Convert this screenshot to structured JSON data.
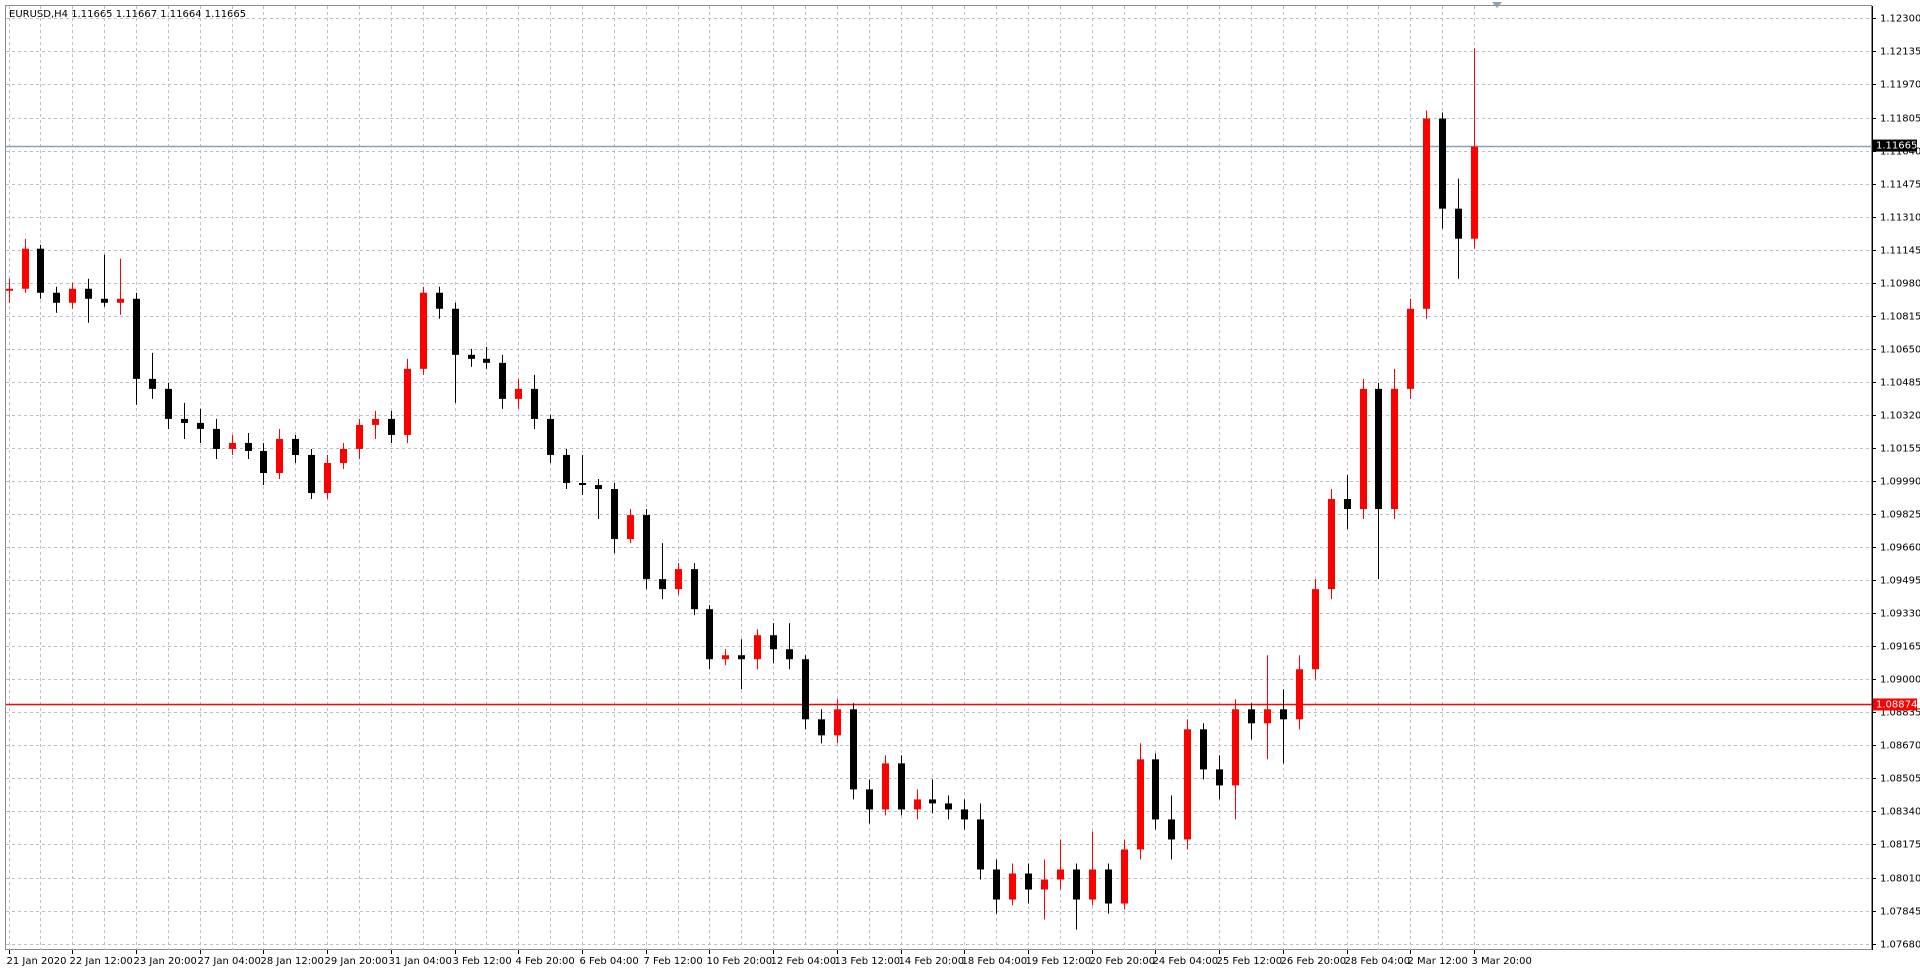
{
  "chart_data": {
    "type": "candlestick",
    "title": "EURUSD,H4  1.11665 1.11667 1.11664 1.11665",
    "bull_color": "#ff0000",
    "bear_color": "#000000",
    "grid": true,
    "ylim": [
      1.07648,
      1.12362
    ],
    "yticks": [
      {
        "value": 1.0768,
        "label": "1.07680"
      },
      1.07845,
      {
        "value": 1.0801,
        "label": "1.08010"
      },
      1.08175,
      {
        "value": 1.0834,
        "label": "1.08340"
      },
      1.08505,
      {
        "value": 1.0867,
        "label": "1.08670"
      },
      1.08835,
      {
        "value": 1.09,
        "label": "1.09000"
      },
      1.09165,
      {
        "value": 1.0933,
        "label": "1.09330"
      },
      1.09495,
      {
        "value": 1.0966,
        "label": "1.09660"
      },
      1.09825,
      {
        "value": 1.0999,
        "label": "1.09990"
      },
      1.10155,
      {
        "value": 1.1032,
        "label": "1.10320"
      },
      1.10485,
      {
        "value": 1.1065,
        "label": "1.10650"
      },
      1.10815,
      {
        "value": 1.1098,
        "label": "1.10980"
      },
      1.11145,
      {
        "value": 1.1131,
        "label": "1.11310"
      },
      1.11475,
      {
        "value": 1.1164,
        "label": "1.11640"
      },
      1.11805,
      {
        "value": 1.1197,
        "label": "1.11970"
      },
      1.12135,
      {
        "value": 1.123,
        "label": "1.12300"
      }
    ],
    "hlines": [
      {
        "value": 1.11665,
        "color": "#8c9fb5",
        "label_bg": "#000000"
      },
      {
        "value": 1.08874,
        "color": "#ff0000",
        "label_bg": "#ff0000"
      }
    ],
    "categories": [
      "21 Jan 2020",
      null,
      null,
      null,
      "22 Jan 12:00",
      null,
      null,
      null,
      "23 Jan 20:00",
      null,
      null,
      null,
      "27 Jan 04:00",
      null,
      null,
      null,
      "28 Jan 12:00",
      null,
      null,
      null,
      "29 Jan 20:00",
      null,
      null,
      null,
      "31 Jan 04:00",
      null,
      null,
      null,
      "3 Feb 12:00",
      null,
      null,
      null,
      "4 Feb 20:00",
      null,
      null,
      null,
      "6 Feb 04:00",
      null,
      null,
      null,
      "7 Feb 12:00",
      null,
      null,
      null,
      "10 Feb 20:00",
      null,
      null,
      null,
      "12 Feb 04:00",
      null,
      null,
      null,
      "13 Feb 12:00",
      null,
      null,
      null,
      "14 Feb 20:00",
      null,
      null,
      null,
      "18 Feb 04:00",
      null,
      null,
      null,
      "19 Feb 12:00",
      null,
      null,
      null,
      "20 Feb 20:00",
      null,
      null,
      null,
      "24 Feb 04:00",
      null,
      null,
      null,
      "25 Feb 12:00",
      null,
      null,
      null,
      "26 Feb 20:00",
      null,
      null,
      null,
      "28 Feb 04:00",
      null,
      null,
      null,
      "2 Mar 12:00",
      null,
      null,
      null,
      "3 Mar 20:00"
    ],
    "ohlc": [
      [
        1.1094,
        1.11,
        1.1088,
        1.1095
      ],
      [
        1.1095,
        1.112,
        1.1093,
        1.1115
      ],
      [
        1.1115,
        1.1117,
        1.109,
        1.1093
      ],
      [
        1.1093,
        1.1096,
        1.1083,
        1.1088
      ],
      [
        1.1088,
        1.1098,
        1.1085,
        1.1095
      ],
      [
        1.1095,
        1.11,
        1.1078,
        1.109
      ],
      [
        1.109,
        1.1112,
        1.1086,
        1.1088
      ],
      [
        1.1088,
        1.111,
        1.1082,
        1.109
      ],
      [
        1.109,
        1.1093,
        1.1037,
        1.105
      ],
      [
        1.105,
        1.1063,
        1.104,
        1.1045
      ],
      [
        1.1045,
        1.1048,
        1.1025,
        1.103
      ],
      [
        1.103,
        1.1038,
        1.102,
        1.1028
      ],
      [
        1.1028,
        1.1035,
        1.1018,
        1.1025
      ],
      [
        1.1025,
        1.103,
        1.101,
        1.1015
      ],
      [
        1.1015,
        1.1022,
        1.1012,
        1.1018
      ],
      [
        1.1018,
        1.1023,
        1.101,
        1.1014
      ],
      [
        1.1014,
        1.1018,
        1.0997,
        1.1003
      ],
      [
        1.1003,
        1.1025,
        1.1,
        1.102
      ],
      [
        1.102,
        1.1022,
        1.1008,
        1.1012
      ],
      [
        1.1012,
        1.1015,
        1.099,
        1.0993
      ],
      [
        1.0993,
        1.1012,
        1.099,
        1.1008
      ],
      [
        1.1008,
        1.1018,
        1.1005,
        1.1015
      ],
      [
        1.1015,
        1.103,
        1.101,
        1.1027
      ],
      [
        1.1027,
        1.1034,
        1.102,
        1.103
      ],
      [
        1.103,
        1.1034,
        1.1018,
        1.1022
      ],
      [
        1.1022,
        1.106,
        1.1018,
        1.1055
      ],
      [
        1.1055,
        1.1096,
        1.1052,
        1.1093
      ],
      [
        1.1093,
        1.1096,
        1.108,
        1.1085
      ],
      [
        1.1085,
        1.1088,
        1.1038,
        1.1062
      ],
      [
        1.1062,
        1.1065,
        1.1056,
        1.106
      ],
      [
        1.106,
        1.1066,
        1.1055,
        1.1058
      ],
      [
        1.1058,
        1.1062,
        1.1035,
        1.104
      ],
      [
        1.104,
        1.105,
        1.1035,
        1.1045
      ],
      [
        1.1045,
        1.1052,
        1.1025,
        1.103
      ],
      [
        1.103,
        1.1032,
        1.1008,
        1.1012
      ],
      [
        1.1012,
        1.1015,
        1.0995,
        1.0998
      ],
      [
        1.0998,
        1.1012,
        1.0992,
        1.0997
      ],
      [
        1.0997,
        1.1,
        1.098,
        1.0995
      ],
      [
        1.0995,
        1.0998,
        1.0963,
        1.097
      ],
      [
        1.097,
        1.0985,
        1.0968,
        1.0982
      ],
      [
        1.0982,
        1.0985,
        1.0945,
        1.095
      ],
      [
        1.095,
        1.0968,
        1.094,
        1.0945
      ],
      [
        1.0945,
        1.0958,
        1.0942,
        1.0955
      ],
      [
        1.0955,
        1.0958,
        1.0932,
        1.0935
      ],
      [
        1.0935,
        1.0937,
        1.0905,
        1.091
      ],
      [
        1.091,
        1.0915,
        1.0907,
        1.0912
      ],
      [
        1.0912,
        1.092,
        1.0895,
        1.091
      ],
      [
        1.091,
        1.0925,
        1.0905,
        1.0922
      ],
      [
        1.0922,
        1.0928,
        1.0908,
        1.0915
      ],
      [
        1.0915,
        1.0928,
        1.0905,
        1.091
      ],
      [
        1.091,
        1.0912,
        1.0875,
        1.088
      ],
      [
        1.088,
        1.0885,
        1.0868,
        1.0872
      ],
      [
        1.0872,
        1.089,
        1.0868,
        1.0885
      ],
      [
        1.0885,
        1.0888,
        1.084,
        1.0845
      ],
      [
        1.0845,
        1.085,
        1.0828,
        1.0835
      ],
      [
        1.0835,
        1.0862,
        1.0832,
        1.0858
      ],
      [
        1.0858,
        1.0862,
        1.0832,
        1.0835
      ],
      [
        1.0835,
        1.0845,
        1.083,
        1.084
      ],
      [
        1.084,
        1.085,
        1.0833,
        1.0838
      ],
      [
        1.0838,
        1.0842,
        1.083,
        1.0835
      ],
      [
        1.0835,
        1.084,
        1.0825,
        1.083
      ],
      [
        1.083,
        1.0838,
        1.08,
        1.0805
      ],
      [
        1.0805,
        1.081,
        1.0783,
        1.079
      ],
      [
        1.079,
        1.0808,
        1.0787,
        1.0803
      ],
      [
        1.0803,
        1.0808,
        1.0788,
        1.0795
      ],
      [
        1.0795,
        1.081,
        1.078,
        1.08
      ],
      [
        1.08,
        1.082,
        1.0795,
        1.0805
      ],
      [
        1.0805,
        1.0808,
        1.0775,
        1.079
      ],
      [
        1.079,
        1.0824,
        1.0787,
        1.0805
      ],
      [
        1.0805,
        1.0808,
        1.0783,
        1.0788
      ],
      [
        1.0788,
        1.082,
        1.0785,
        1.0815
      ],
      [
        1.0815,
        1.0868,
        1.081,
        1.086
      ],
      [
        1.086,
        1.0863,
        1.0825,
        1.083
      ],
      [
        1.083,
        1.0842,
        1.081,
        1.082
      ],
      [
        1.082,
        1.088,
        1.0815,
        1.0875
      ],
      [
        1.0875,
        1.0878,
        1.085,
        1.0855
      ],
      [
        1.0855,
        1.0862,
        1.084,
        1.0847
      ],
      [
        1.0847,
        1.089,
        1.083,
        1.0885
      ],
      [
        1.0885,
        1.0888,
        1.087,
        1.0878
      ],
      [
        1.0878,
        1.0912,
        1.086,
        1.0885
      ],
      [
        1.0885,
        1.0895,
        1.0858,
        1.088
      ],
      [
        1.088,
        1.0912,
        1.0875,
        1.0905
      ],
      [
        1.0905,
        1.095,
        1.09,
        1.0945
      ],
      [
        1.0945,
        1.0995,
        1.094,
        1.099
      ],
      [
        1.099,
        1.1002,
        1.0975,
        1.0985
      ],
      [
        1.0985,
        1.105,
        1.098,
        1.1045
      ],
      [
        1.1045,
        1.1048,
        1.095,
        1.0985
      ],
      [
        1.0985,
        1.1055,
        1.098,
        1.1045
      ],
      [
        1.1045,
        1.109,
        1.104,
        1.1085
      ],
      [
        1.1085,
        1.1184,
        1.108,
        1.118
      ],
      [
        1.118,
        1.1183,
        1.1125,
        1.1135
      ],
      [
        1.1135,
        1.115,
        1.11,
        1.112
      ],
      [
        1.112,
        1.1215,
        1.1115,
        1.1166
      ]
    ]
  }
}
